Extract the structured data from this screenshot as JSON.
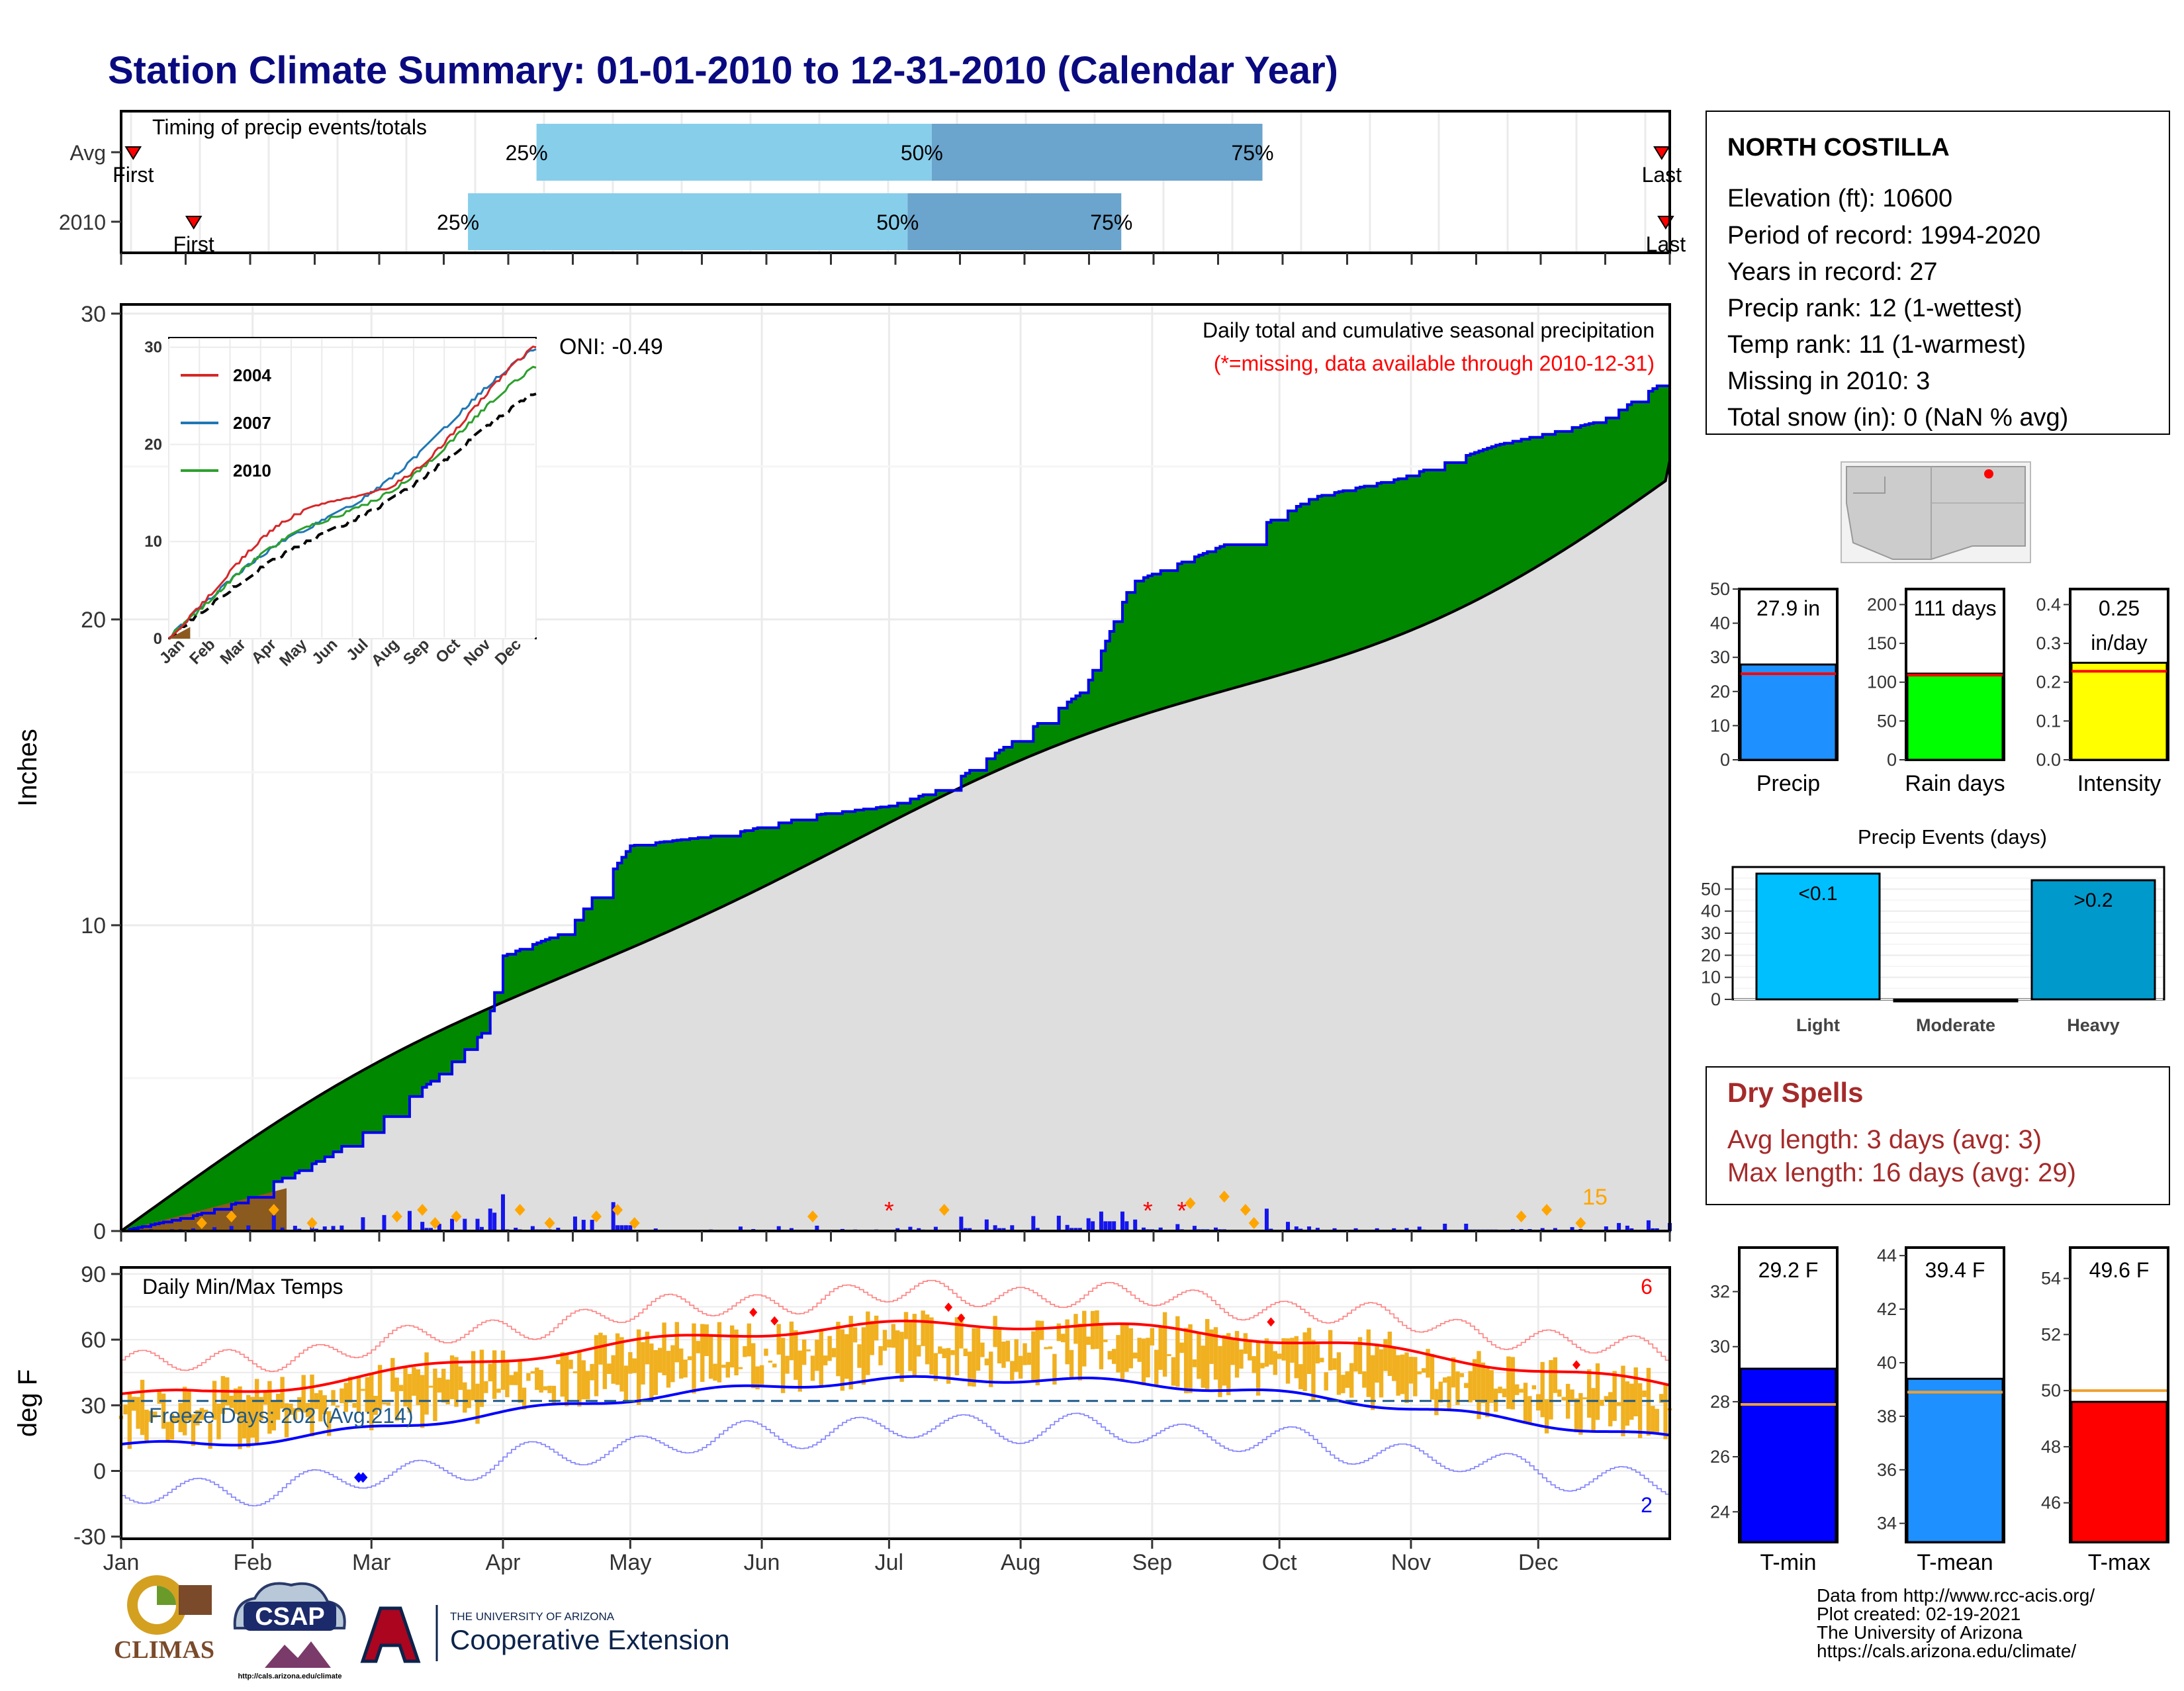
{
  "page_title": "Station Climate Summary: 01-01-2010 to 12-31-2010 (Calendar Year)",
  "colors": {
    "title": "#0a0a80",
    "green_fill": "#008800",
    "gray_fill": "#dedede",
    "brown_fill": "#8b5a1e",
    "blue_line": "#0000ee",
    "bar_blue": "#1515ee",
    "orange_marker": "#ffa500",
    "missing_red": "#ff0000",
    "light_blue": "#87ceeb",
    "mid_blue": "#6ba4cc",
    "gold": "#f0b020",
    "dry_spell_red": "#a52a2a"
  },
  "timing": {
    "title": "Timing of precip events/totals",
    "rows": [
      {
        "label": "Avg",
        "q25": 103,
        "q50": 201,
        "q75": 283,
        "first_label": "First",
        "first_day": 3,
        "last_label": "Last",
        "last_day": 382,
        "pct_labels": [
          "25%",
          "50%",
          "75%"
        ]
      },
      {
        "label": "2010",
        "q25": 86,
        "q50": 195,
        "q75": 248,
        "first_label": "First",
        "first_day": 18,
        "last_label": "Last",
        "last_day": 383,
        "pct_labels": [
          "25%",
          "50%",
          "75%"
        ]
      }
    ]
  },
  "precip": {
    "y_axis_label": "Inches",
    "y_ticks": [
      0,
      10,
      20,
      30
    ],
    "ylim": [
      0,
      30.3
    ],
    "header_line1": "Daily total and cumulative seasonal precipitation",
    "header_line2": "(*=missing, data available through 2010-12-31)",
    "oni_label": "ONI: -0.49",
    "corner_count": "15",
    "missing_marker": "*",
    "missing_days": [
      182,
      243,
      251
    ]
  },
  "inset": {
    "y_ticks": [
      0,
      10,
      20,
      30
    ],
    "month_ticks": [
      "Jan",
      "Feb",
      "Mar",
      "Apr",
      "May",
      "Jun",
      "Jul",
      "Aug",
      "Sep",
      "Oct",
      "Nov",
      "Dec"
    ],
    "legend": [
      "2004",
      "2007",
      "2010"
    ]
  },
  "temps": {
    "title": "Daily Min/Max Temps",
    "y_axis_label": "deg F",
    "y_ticks": [
      90,
      60,
      30,
      0,
      -30
    ],
    "ylim": [
      -31,
      93
    ],
    "freeze_label": "Freeze Days: 202 (Avg:214)",
    "record_high_count": "6",
    "record_low_count": "2",
    "freeze_threshold": 32
  },
  "x_months": [
    "Jan",
    "Feb",
    "Mar",
    "Apr",
    "May",
    "Jun",
    "Jul",
    "Aug",
    "Sep",
    "Oct",
    "Nov",
    "Dec"
  ],
  "station": {
    "name": "NORTH COSTILLA",
    "lines": [
      "Elevation (ft): 10600",
      "Period of record: 1994-2020",
      "Years in record: 27",
      "Precip rank: 12 (1-wettest)",
      "Temp rank: 11 (1-warmest)",
      "Missing in 2010: 3",
      "Total snow (in): 0 (NaN % avg)"
    ]
  },
  "summary_bars": [
    {
      "label": "Precip",
      "value_text": "27.9 in",
      "value_text2": "",
      "value": 27.9,
      "avg": 25.2,
      "ticks": [
        0,
        10,
        20,
        30,
        40,
        50
      ],
      "ymax": 50,
      "color": "#1e90ff"
    },
    {
      "label": "Rain days",
      "value_text": "111 days",
      "value_text2": "",
      "value": 111,
      "avg": 109,
      "ticks": [
        0,
        50,
        100,
        150,
        200
      ],
      "ymax": 220,
      "color": "#00ff00"
    },
    {
      "label": "Intensity",
      "value_text": "0.25",
      "value_text2": "in/day",
      "value": 0.25,
      "avg": 0.228,
      "ticks": [
        "0.0",
        "0.1",
        "0.2",
        "0.3",
        "0.4"
      ],
      "ymax": 0.44,
      "color": "#ffff00"
    }
  ],
  "events": {
    "title": "Precip Events (days)",
    "ticks": [
      0,
      10,
      20,
      30,
      40,
      50
    ],
    "bars": [
      {
        "label": "Light",
        "inner": "<0.1",
        "value": 57,
        "color": "#00bfff"
      },
      {
        "label": "Moderate",
        "inner": "",
        "value": 0,
        "color": "#2f8fcf"
      },
      {
        "label": "Heavy",
        "inner": ">0.2",
        "value": 54,
        "color": "#0099cc"
      }
    ]
  },
  "dry_spells": {
    "title": "Dry Spells",
    "avg_line": "Avg length: 3 days (avg: 3)",
    "max_line": "Max length: 16 days (avg: 29)"
  },
  "temp_bars": [
    {
      "label": "T-min",
      "value_text": "29.2 F",
      "value": 29.2,
      "avg": 27.9,
      "ticks": [
        24,
        26,
        28,
        30,
        32
      ],
      "ymin": 22.9,
      "ymax": 33.6,
      "color": "#0000ff"
    },
    {
      "label": "T-mean",
      "value_text": "39.4 F",
      "value": 39.4,
      "avg": 38.9,
      "ticks": [
        34,
        36,
        38,
        40,
        42,
        44
      ],
      "ymin": 33.3,
      "ymax": 44.3,
      "color": "#1e90ff"
    },
    {
      "label": "T-max",
      "value_text": "49.6 F",
      "value": 49.6,
      "avg": 50.0,
      "ticks": [
        46,
        48,
        50,
        52,
        54
      ],
      "ymin": 44.6,
      "ymax": 55.1,
      "color": "#ff0000"
    }
  ],
  "footer": {
    "lines": [
      "Data from http://www.rcc-acis.org/",
      "Plot created: 02-19-2021",
      "The University of Arizona",
      "https://cals.arizona.edu/climate/"
    ],
    "climas": "CLIMAS",
    "csap": "CSAP",
    "csap_url": "http://cals.arizona.edu/climate",
    "ua_line1": "THE UNIVERSITY OF ARIZONA",
    "ua_line2": "Cooperative Extension"
  }
}
